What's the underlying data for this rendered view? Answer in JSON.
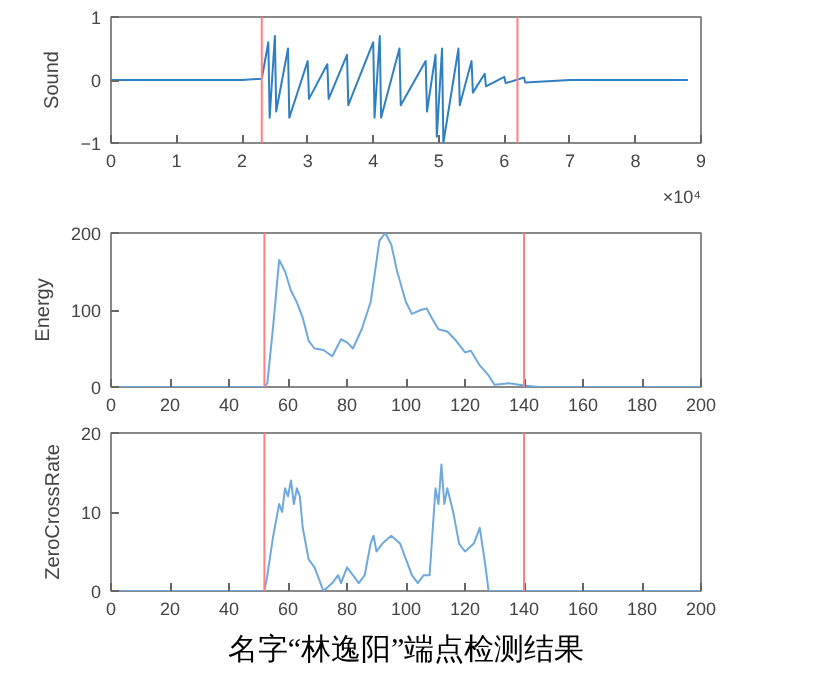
{
  "chart_data": [
    {
      "type": "line",
      "ylabel": "Sound",
      "xlim": [
        0,
        9
      ],
      "ylim": [
        -1,
        1
      ],
      "xticks": [
        0,
        1,
        2,
        3,
        4,
        5,
        6,
        7,
        8,
        9
      ],
      "yticks": [
        -1,
        0,
        1
      ],
      "grid": false,
      "annotations": [
        "×10⁴"
      ],
      "series": [
        {
          "color": "#2f7fc1",
          "x": [
            0,
            1,
            2,
            2.3,
            2.4,
            2.42,
            2.5,
            2.52,
            2.7,
            2.72,
            3.0,
            3.02,
            3.3,
            3.32,
            3.6,
            3.62,
            4.0,
            4.02,
            4.1,
            4.12,
            4.4,
            4.42,
            4.8,
            4.82,
            4.95,
            4.97,
            5.05,
            5.07,
            5.3,
            5.32,
            5.5,
            5.52,
            5.7,
            5.72,
            6.0,
            6.02,
            6.3,
            6.32,
            7.0,
            8.0,
            8.8
          ],
          "values": [
            0,
            0,
            0,
            0.02,
            0.6,
            -0.6,
            0.7,
            -0.5,
            0.5,
            -0.6,
            0.3,
            -0.3,
            0.25,
            -0.3,
            0.4,
            -0.4,
            0.6,
            -0.6,
            0.7,
            -0.6,
            0.5,
            -0.4,
            0.3,
            -0.5,
            0.4,
            -0.9,
            0.5,
            -1.0,
            0.5,
            -0.4,
            0.3,
            -0.2,
            0.1,
            -0.1,
            0.05,
            -0.05,
            0.04,
            -0.04,
            0,
            0,
            0
          ]
        }
      ],
      "ref_lines": [
        {
          "axis": "x",
          "value": 2.3,
          "color": "#ff8080"
        },
        {
          "axis": "x",
          "value": 6.2,
          "color": "#ff8080"
        }
      ]
    },
    {
      "type": "line",
      "ylabel": "Energy",
      "xlim": [
        0,
        200
      ],
      "ylim": [
        0,
        200
      ],
      "xticks": [
        0,
        20,
        40,
        60,
        80,
        100,
        120,
        140,
        160,
        180,
        200
      ],
      "yticks": [
        0,
        100,
        200
      ],
      "grid": false,
      "series": [
        {
          "color": "#6fa8dc",
          "x": [
            0,
            52,
            53,
            55,
            57,
            59,
            61,
            63,
            65,
            67,
            69,
            72,
            75,
            78,
            80,
            82,
            85,
            88,
            91,
            93,
            95,
            97,
            100,
            102,
            105,
            107,
            109,
            111,
            114,
            117,
            120,
            122,
            125,
            128,
            130,
            135,
            140,
            145,
            200
          ],
          "values": [
            0,
            0,
            5,
            80,
            165,
            150,
            125,
            110,
            90,
            60,
            50,
            48,
            40,
            62,
            58,
            50,
            75,
            110,
            190,
            200,
            185,
            150,
            110,
            95,
            100,
            102,
            88,
            75,
            72,
            60,
            45,
            47,
            28,
            15,
            3,
            5,
            2,
            0,
            0
          ]
        }
      ],
      "ref_lines": [
        {
          "axis": "x",
          "value": 52,
          "color": "#ff8080"
        },
        {
          "axis": "x",
          "value": 140,
          "color": "#ff8080"
        }
      ]
    },
    {
      "type": "line",
      "ylabel": "ZeroCrossRate",
      "xlim": [
        0,
        200
      ],
      "ylim": [
        0,
        20
      ],
      "xticks": [
        0,
        20,
        40,
        60,
        80,
        100,
        120,
        140,
        160,
        180,
        200
      ],
      "yticks": [
        0,
        10,
        20
      ],
      "grid": false,
      "annotations": [
        "名字“林逸阳”端点检测结果"
      ],
      "series": [
        {
          "color": "#6fa8dc",
          "x": [
            0,
            52,
            53,
            55,
            57,
            58,
            59,
            60,
            61,
            62,
            63,
            64,
            65,
            67,
            69,
            70,
            72,
            75,
            77,
            78,
            79,
            80,
            82,
            84,
            86,
            88,
            89,
            90,
            92,
            95,
            98,
            100,
            102,
            104,
            106,
            108,
            110,
            111,
            112,
            113,
            114,
            116,
            118,
            120,
            123,
            125,
            127,
            128,
            200
          ],
          "values": [
            0,
            0,
            2,
            7,
            11,
            10,
            13,
            12,
            14,
            11,
            13,
            12,
            8,
            4,
            3,
            2,
            0,
            1,
            2,
            1,
            2,
            3,
            2,
            1,
            2,
            6,
            7,
            5,
            6,
            7,
            6,
            4,
            2,
            1,
            2,
            2,
            13,
            11,
            16,
            11,
            13,
            10,
            6,
            5,
            6,
            8,
            3,
            0,
            0
          ]
        }
      ],
      "ref_lines": [
        {
          "axis": "x",
          "value": 52,
          "color": "#ff8080"
        },
        {
          "axis": "x",
          "value": 140,
          "color": "#ff8080"
        }
      ]
    }
  ]
}
